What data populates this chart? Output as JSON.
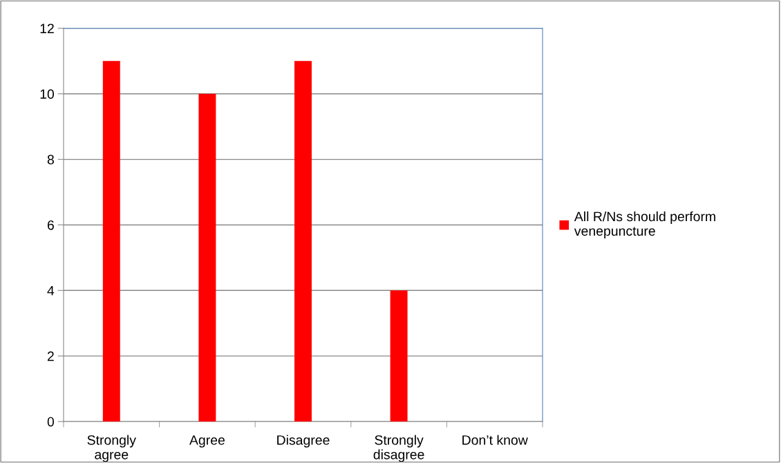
{
  "chart_data": {
    "type": "bar",
    "categories": [
      "Strongly\nagree",
      "Agree",
      "Disagree",
      "Strongly\ndisagree",
      "Don’t know"
    ],
    "series": [
      {
        "name": "All R/Ns should perform\nvenepuncture",
        "color": "#ff0000",
        "values": [
          11,
          10,
          11,
          4,
          0
        ]
      }
    ],
    "ylim": [
      0,
      12
    ],
    "yticks": [
      0,
      2,
      4,
      6,
      8,
      10,
      12
    ],
    "grid": "y",
    "legend": "right"
  }
}
